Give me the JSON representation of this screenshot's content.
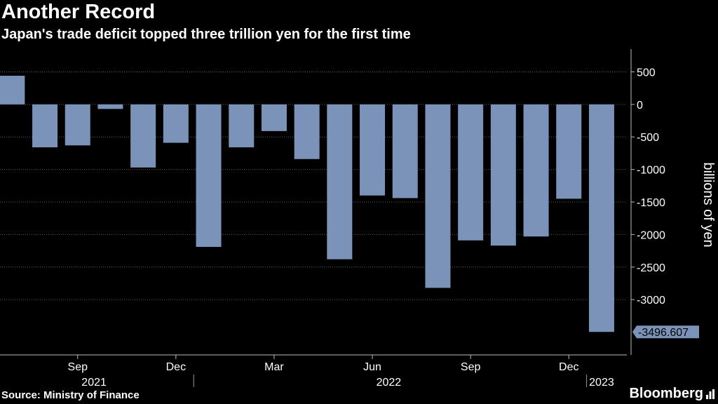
{
  "header": {
    "title": "Another Record",
    "subtitle": "Japan's trade deficit topped three trillion yen for the first time"
  },
  "footer": {
    "source": "Source: Ministry of Finance",
    "brand": "Bloomberg"
  },
  "colors": {
    "background": "#000000",
    "bar": "#7b93b8",
    "grid": "#5a5a5a",
    "text": "#ffffff"
  },
  "chart_data": {
    "type": "bar",
    "title": "Another Record",
    "subtitle": "Japan's trade deficit topped three trillion yen for the first time",
    "xlabel": "",
    "ylabel": "billions of yen",
    "ylim": [
      -3850,
      850
    ],
    "yticks": [
      500,
      0,
      -500,
      -1000,
      -1500,
      -2000,
      -2500,
      -3000
    ],
    "ytick_labels": [
      "500",
      "0",
      "-500",
      "-1000",
      "-1500",
      "-2000",
      "-2500",
      "-3000"
    ],
    "grid": "horizontal dotted",
    "axis_side": "right",
    "categories": [
      "2021-07",
      "2021-08",
      "2021-09",
      "2021-10",
      "2021-11",
      "2021-12",
      "2022-01",
      "2022-02",
      "2022-03",
      "2022-04",
      "2022-05",
      "2022-06",
      "2022-07",
      "2022-08",
      "2022-09",
      "2022-10",
      "2022-11",
      "2022-12",
      "2023-01"
    ],
    "values": [
      440,
      -660,
      -630,
      -70,
      -970,
      -590,
      -2190,
      -660,
      -410,
      -840,
      -2380,
      -1400,
      -1440,
      -2820,
      -2090,
      -2170,
      -2030,
      -1450,
      -3496.607
    ],
    "month_labels": [
      {
        "index": 2,
        "label": "Sep"
      },
      {
        "index": 5,
        "label": "Dec"
      },
      {
        "index": 8,
        "label": "Mar"
      },
      {
        "index": 11,
        "label": "Jun"
      },
      {
        "index": 14,
        "label": "Sep"
      },
      {
        "index": 17,
        "label": "Dec"
      }
    ],
    "year_labels": [
      {
        "label": "2021",
        "from": 0,
        "to": 5
      },
      {
        "label": "2022",
        "from": 6,
        "to": 17
      },
      {
        "label": "2023",
        "from": 18,
        "to": 18
      }
    ],
    "annotation": {
      "index": 18,
      "label": "-3496.607"
    }
  }
}
